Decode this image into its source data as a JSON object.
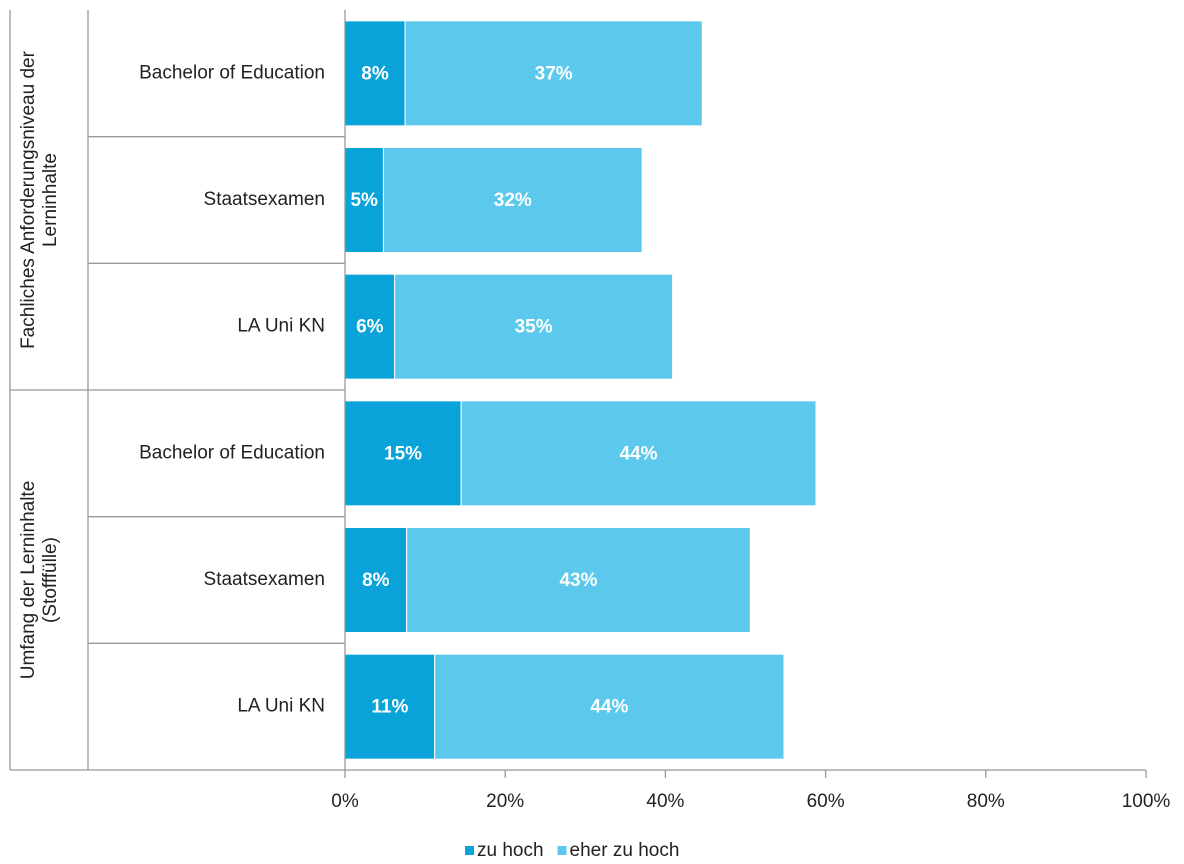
{
  "chart_data": {
    "type": "stacked-barh",
    "group_labels": [
      [
        "Fachliches Anforderungsniveau der",
        "Lerninhalte"
      ],
      [
        "Umfang der Lerninhalte",
        "(Stofffülle)"
      ]
    ],
    "categories": [
      "Bachelor of Education",
      "Staatsexamen",
      "LA Uni KN",
      "Bachelor of Education",
      "Staatsexamen",
      "LA Uni KN"
    ],
    "series": [
      {
        "name": "zu hoch",
        "color": "#0aa3d9",
        "values": [
          7.5,
          4.8,
          6.2,
          14.5,
          7.7,
          11.2
        ],
        "value_labels": [
          "8%",
          "5%",
          "6%",
          "15%",
          "8%",
          "11%"
        ]
      },
      {
        "name": "eher zu hoch",
        "color": "#5bc8ec",
        "values": [
          37.1,
          32.3,
          34.7,
          44.3,
          42.9,
          43.6
        ],
        "value_labels": [
          "37%",
          "32%",
          "35%",
          "44%",
          "43%",
          "44%"
        ]
      }
    ],
    "xlim": [
      0,
      100
    ],
    "xticks": [
      {
        "value": 0,
        "label": "0%"
      },
      {
        "value": 20,
        "label": "20%"
      },
      {
        "value": 40,
        "label": "40%"
      },
      {
        "value": 60,
        "label": "60%"
      },
      {
        "value": 80,
        "label": "80%"
      },
      {
        "value": 100,
        "label": "100%"
      }
    ],
    "legend": "bottom"
  }
}
